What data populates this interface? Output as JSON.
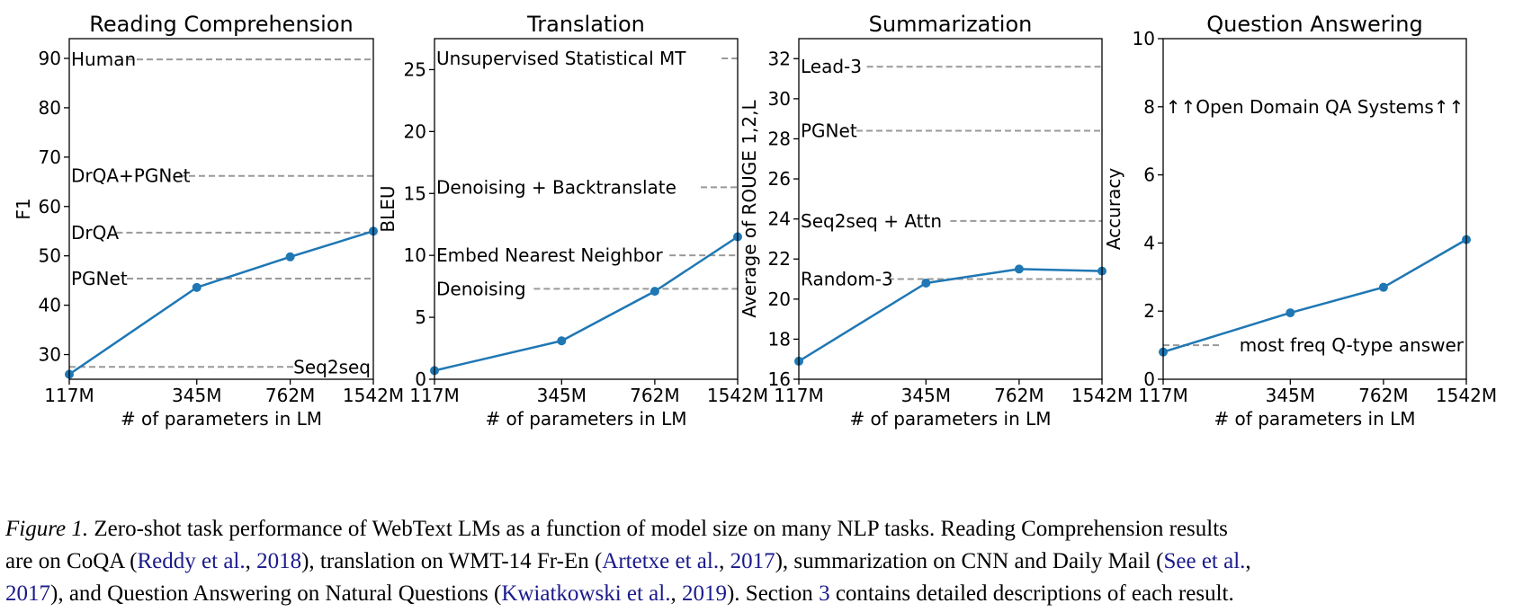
{
  "chart_data": [
    {
      "type": "line",
      "title": "Reading Comprehension",
      "xlabel": "# of parameters in LM",
      "ylabel": "F1",
      "x": [
        "117M",
        "345M",
        "762M",
        "1542M"
      ],
      "log_x": true,
      "ylim": [
        25,
        94
      ],
      "yticks": [
        30,
        40,
        50,
        60,
        70,
        80,
        90
      ],
      "series": [
        {
          "values": [
            26,
            43.6,
            49.8,
            55
          ]
        }
      ],
      "baselines": [
        {
          "label": "Human",
          "value": 89.8,
          "label_pos": "left"
        },
        {
          "label": "DrQA+PGNet",
          "value": 66.2,
          "label_pos": "left"
        },
        {
          "label": "DrQA",
          "value": 54.7,
          "label_pos": "left"
        },
        {
          "label": "PGNet",
          "value": 45.4,
          "label_pos": "left"
        },
        {
          "label": "Seq2seq",
          "value": 27.5,
          "label_pos": "right"
        }
      ],
      "color": "#1f77b4"
    },
    {
      "type": "line",
      "title": "Translation",
      "xlabel": "# of parameters in LM",
      "ylabel": "BLEU",
      "x": [
        "117M",
        "345M",
        "762M",
        "1542M"
      ],
      "log_x": true,
      "ylim": [
        0,
        27.5
      ],
      "yticks": [
        0,
        5,
        10,
        15,
        20,
        25
      ],
      "series": [
        {
          "values": [
            0.7,
            3.1,
            7.1,
            11.5
          ]
        }
      ],
      "baselines": [
        {
          "label": "Unsupervised Statistical MT",
          "value": 25.9,
          "label_pos": "left"
        },
        {
          "label": "Denoising + Backtranslate",
          "value": 15.5,
          "label_pos": "left"
        },
        {
          "label": "Embed Nearest Neighbor",
          "value": 10,
          "label_pos": "left"
        },
        {
          "label": "Denoising",
          "value": 7.3,
          "label_pos": "left"
        }
      ],
      "color": "#1f77b4"
    },
    {
      "type": "line",
      "title": "Summarization",
      "xlabel": "# of parameters in LM",
      "ylabel": "Average of ROUGE 1,2,L",
      "x": [
        "117M",
        "345M",
        "762M",
        "1542M"
      ],
      "log_x": true,
      "ylim": [
        16,
        33
      ],
      "yticks": [
        16,
        18,
        20,
        22,
        24,
        26,
        28,
        30,
        32
      ],
      "series": [
        {
          "values": [
            16.9,
            20.8,
            21.5,
            21.4
          ]
        }
      ],
      "baselines": [
        {
          "label": "Lead-3",
          "value": 31.6,
          "label_pos": "left"
        },
        {
          "label": "PGNet",
          "value": 28.4,
          "label_pos": "left"
        },
        {
          "label": "Seq2seq + Attn",
          "value": 23.9,
          "label_pos": "left"
        },
        {
          "label": "Random-3",
          "value": 21,
          "label_pos": "left"
        }
      ],
      "color": "#1f77b4"
    },
    {
      "type": "line",
      "title": "Question Answering",
      "xlabel": "# of parameters in LM",
      "ylabel": "Accuracy",
      "x": [
        "117M",
        "345M",
        "762M",
        "1542M"
      ],
      "log_x": true,
      "ylim": [
        0,
        10
      ],
      "yticks": [
        0,
        2,
        4,
        6,
        8,
        10
      ],
      "series": [
        {
          "values": [
            0.8,
            1.95,
            2.7,
            4.1
          ]
        }
      ],
      "baselines": [
        {
          "label": "most freq Q-type answer",
          "value": 1,
          "label_pos": "right"
        }
      ],
      "annotation": {
        "text": "↑↑Open Domain QA Systems↑↑",
        "value": 8
      },
      "color": "#1f77b4"
    }
  ],
  "caption": {
    "figure_label": "Figure 1.",
    "segments": [
      {
        "text": " Zero-shot task performance of WebText LMs as a function of model size on many NLP tasks. Reading Comprehension results",
        "cite": false,
        "line": 0
      },
      {
        "text": "are on CoQA (",
        "cite": false,
        "line": 1
      },
      {
        "text": "Reddy et al.",
        "cite": true,
        "line": 1
      },
      {
        "text": ", ",
        "cite": false,
        "line": 1
      },
      {
        "text": "2018",
        "cite": true,
        "line": 1
      },
      {
        "text": "), translation on WMT-14 Fr-En (",
        "cite": false,
        "line": 1
      },
      {
        "text": "Artetxe et al.",
        "cite": true,
        "line": 1
      },
      {
        "text": ", ",
        "cite": false,
        "line": 1
      },
      {
        "text": "2017",
        "cite": true,
        "line": 1
      },
      {
        "text": "), summarization on CNN and Daily Mail (",
        "cite": false,
        "line": 1
      },
      {
        "text": "See et al.",
        "cite": true,
        "line": 1
      },
      {
        "text": ",",
        "cite": false,
        "line": 1
      },
      {
        "text": "2017",
        "cite": true,
        "line": 2
      },
      {
        "text": "), and Question Answering on Natural Questions (",
        "cite": false,
        "line": 2
      },
      {
        "text": "Kwiatkowski et al.",
        "cite": true,
        "line": 2
      },
      {
        "text": ", ",
        "cite": false,
        "line": 2
      },
      {
        "text": "2019",
        "cite": true,
        "line": 2
      },
      {
        "text": "). Section ",
        "cite": false,
        "line": 2
      },
      {
        "text": "3",
        "cite": true,
        "line": 2
      },
      {
        "text": " contains detailed descriptions of each result.",
        "cite": false,
        "line": 2
      }
    ]
  }
}
